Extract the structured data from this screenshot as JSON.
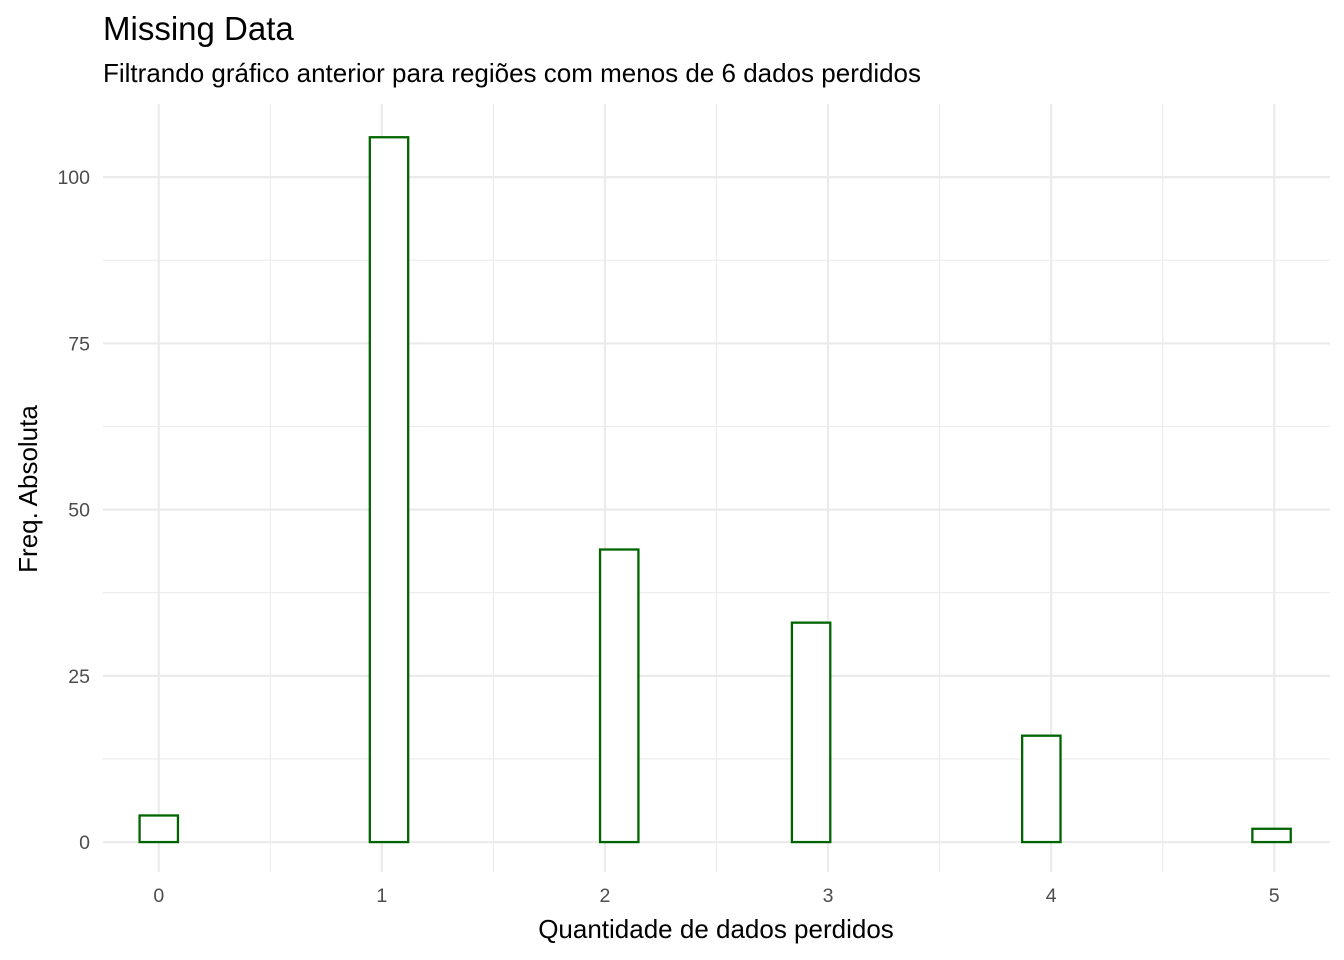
{
  "chart_data": {
    "type": "histogram",
    "title": "Missing Data",
    "subtitle": "Filtrando gráfico anterior para regiões com menos de 6 dados perdidos",
    "xlabel": "Quantidade de dados perdidos",
    "ylabel": "Freq. Absoluta",
    "x_ticks": [
      "0",
      "1",
      "2",
      "3",
      "4",
      "5"
    ],
    "y_ticks": [
      "0",
      "25",
      "50",
      "75",
      "100"
    ],
    "xlim": [
      -0.25,
      5.25
    ],
    "ylim": [
      -4.5,
      111
    ],
    "bin_width": 0.172,
    "bins": [
      {
        "x": 0.0,
        "value": 4
      },
      {
        "x": 1.03,
        "value": 106
      },
      {
        "x": 2.06,
        "value": 44
      },
      {
        "x": 2.92,
        "value": 33
      },
      {
        "x": 3.95,
        "value": 16
      },
      {
        "x": 4.98,
        "value": 2
      }
    ],
    "grid": true,
    "colors": {
      "outline": "#006400",
      "fill": "#ffffff",
      "grid": "#ebebeb",
      "tick_text": "#4d4d4d"
    }
  }
}
